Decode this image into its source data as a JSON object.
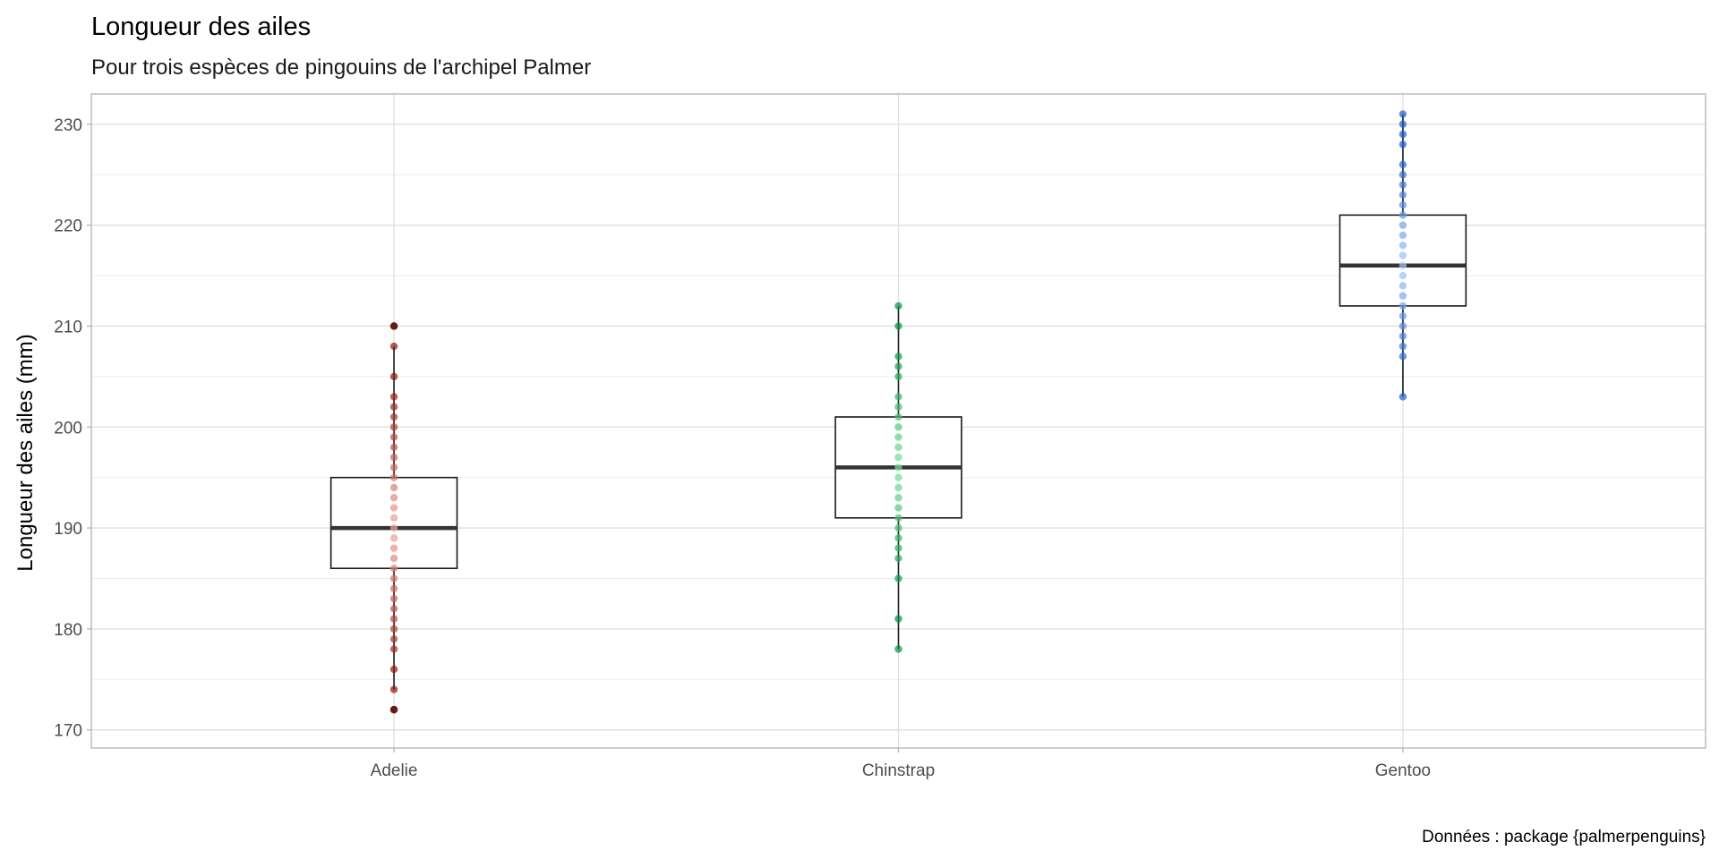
{
  "chart_data": {
    "type": "box",
    "title": "Longueur des ailes",
    "subtitle": "Pour trois espèces de pingouins de l'archipel Palmer",
    "xlabel": "",
    "ylabel": "Longueur des ailes (mm)",
    "caption": "Données : package {palmerpenguins}",
    "ylim": [
      168.2,
      233.0
    ],
    "yticks": [
      170,
      180,
      190,
      200,
      210,
      220,
      230
    ],
    "grid": true,
    "categories": [
      "Adelie",
      "Chinstrap",
      "Gentoo"
    ],
    "boxes": [
      {
        "name": "Adelie",
        "q1": 186,
        "median": 190,
        "q3": 195,
        "whisker_low": 174,
        "whisker_high": 208,
        "outliers": [
          172,
          210
        ],
        "points": [
          172,
          174,
          176,
          178,
          179,
          180,
          181,
          182,
          183,
          184,
          185,
          186,
          187,
          188,
          189,
          190,
          191,
          192,
          193,
          194,
          195,
          196,
          197,
          198,
          199,
          200,
          201,
          202,
          203,
          205,
          208,
          210
        ],
        "color_light": "#f4a89d",
        "color_dark": "#8b1a0e"
      },
      {
        "name": "Chinstrap",
        "q1": 191,
        "median": 196,
        "q3": 201,
        "whisker_low": 178,
        "whisker_high": 212,
        "outliers": [],
        "points": [
          178,
          181,
          185,
          187,
          188,
          189,
          190,
          191,
          192,
          193,
          194,
          195,
          196,
          197,
          198,
          199,
          200,
          201,
          202,
          203,
          205,
          206,
          207,
          210,
          212
        ],
        "color_light": "#7ee0a0",
        "color_dark": "#00913a"
      },
      {
        "name": "Gentoo",
        "q1": 212,
        "median": 216,
        "q3": 221,
        "whisker_low": 203,
        "whisker_high": 231,
        "outliers": [],
        "points": [
          203,
          207,
          208,
          209,
          210,
          211,
          212,
          213,
          214,
          215,
          216,
          217,
          218,
          219,
          220,
          221,
          222,
          223,
          224,
          225,
          226,
          228,
          229,
          230,
          231
        ],
        "color_light": "#a9c9f5",
        "color_dark": "#1c5ed0"
      }
    ]
  }
}
